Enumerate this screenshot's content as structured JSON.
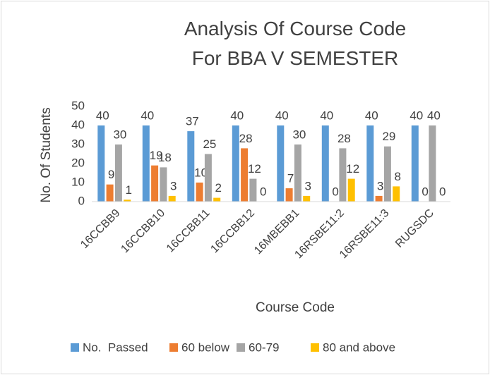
{
  "chart_data": {
    "type": "bar",
    "title": "Analysis Of Course Code For BBA V SEMESTER",
    "x_label": "Course Code",
    "y_label": "No. Of Students",
    "categories": [
      "16CCBB9",
      "16CCBB10",
      "16CCBB11",
      "16CCBB12",
      "16MBEBB1",
      "16RSBE11:2",
      "16RSBE11:3",
      "RUGSDC"
    ],
    "series": [
      {
        "name": "No.  Passed",
        "color": "#5b9bd5",
        "values": [
          40,
          40,
          37,
          40,
          40,
          40,
          40,
          40
        ]
      },
      {
        "name": "60 below",
        "color": "#ed7d31",
        "values": [
          9,
          19,
          10,
          28,
          7,
          0,
          3,
          0
        ]
      },
      {
        "name": "60-79",
        "color": "#a5a5a5",
        "values": [
          30,
          18,
          25,
          12,
          30,
          28,
          29,
          40
        ]
      },
      {
        "name": "80 and above",
        "color": "#ffc000",
        "values": [
          1,
          3,
          2,
          0,
          3,
          12,
          8,
          0
        ]
      }
    ],
    "ylim": [
      0,
      50
    ],
    "yticks": [
      0,
      10,
      20,
      30,
      40,
      50
    ],
    "grid": false,
    "legend": "bottom"
  }
}
